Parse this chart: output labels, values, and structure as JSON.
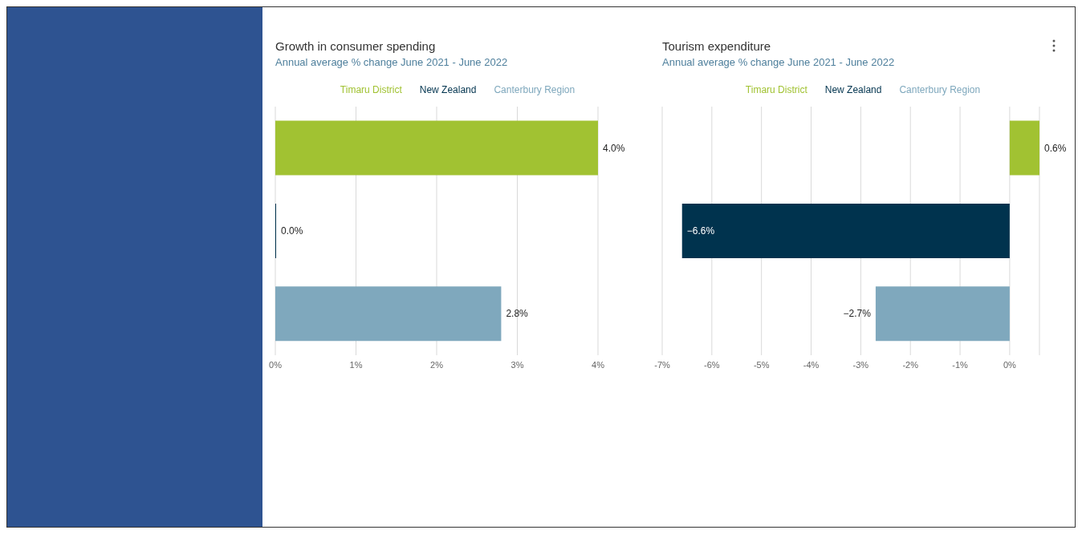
{
  "chart_data": [
    {
      "type": "bar",
      "orientation": "horizontal",
      "title": "Growth in consumer spending",
      "subtitle": "Annual average % change June 2021 - June 2022",
      "categories": [
        null,
        null,
        null
      ],
      "series": [
        {
          "name": "Timaru District",
          "color": "#a1c232",
          "values": [
            4.0,
            null,
            null
          ],
          "value_labels": [
            "4.0%",
            null,
            null
          ]
        },
        {
          "name": "New Zealand",
          "color": "#00334e",
          "values": [
            null,
            0.0,
            null
          ],
          "value_labels": [
            null,
            "0.0%",
            null
          ]
        },
        {
          "name": "Canterbury Region",
          "color": "#7fa8bd",
          "values": [
            null,
            null,
            2.8
          ],
          "value_labels": [
            null,
            null,
            "2.8%"
          ]
        }
      ],
      "xlim": [
        0,
        4
      ],
      "xticks": [
        {
          "value": 0,
          "label": "0%"
        },
        {
          "value": 1,
          "label": "1%"
        },
        {
          "value": 2,
          "label": "2%"
        },
        {
          "value": 3,
          "label": "3%"
        },
        {
          "value": 4,
          "label": "4%"
        }
      ],
      "grid": "x",
      "legend": "top",
      "tick_labels": "x"
    },
    {
      "type": "bar",
      "orientation": "horizontal",
      "title": "Tourism expenditure",
      "subtitle": "Annual average % change June 2021 - June 2022",
      "categories": [
        null,
        null,
        null
      ],
      "series": [
        {
          "name": "Timaru District",
          "color": "#a1c232",
          "values": [
            0.6,
            null,
            null
          ],
          "value_labels": [
            "0.6%",
            null,
            null
          ]
        },
        {
          "name": "New Zealand",
          "color": "#00334e",
          "values": [
            null,
            -6.6,
            null
          ],
          "value_labels": [
            null,
            "−6.6%",
            null
          ]
        },
        {
          "name": "Canterbury Region",
          "color": "#7fa8bd",
          "values": [
            null,
            null,
            -2.7
          ],
          "value_labels": [
            null,
            null,
            "−2.7%"
          ]
        }
      ],
      "xlim": [
        -7,
        0.6
      ],
      "xticks": [
        {
          "value": -7,
          "label": "-7%"
        },
        {
          "value": -6,
          "label": "-6%"
        },
        {
          "value": -5,
          "label": "-5%"
        },
        {
          "value": -4,
          "label": "-4%"
        },
        {
          "value": -3,
          "label": "-3%"
        },
        {
          "value": -2,
          "label": "-2%"
        },
        {
          "value": -1,
          "label": "-1%"
        },
        {
          "value": 0,
          "label": "0%"
        }
      ],
      "grid": "x",
      "legend": "top",
      "tick_labels": "x"
    }
  ]
}
